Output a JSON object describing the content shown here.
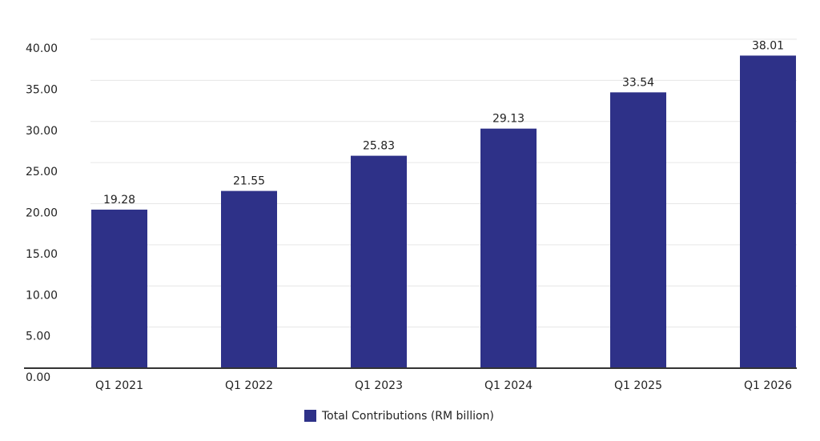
{
  "chart_data": {
    "type": "bar",
    "categories": [
      "Q1 2021",
      "Q1 2022",
      "Q1 2023",
      "Q1 2024",
      "Q1 2025",
      "Q1 2026"
    ],
    "series": [
      {
        "name": "Total Contributions (RM billion)",
        "color": "#2e3188",
        "values": [
          19.28,
          21.55,
          25.83,
          29.13,
          33.54,
          38.01
        ]
      }
    ],
    "ylim": [
      0,
      40
    ],
    "yticks": [
      {
        "value": 0,
        "label": "0.00"
      },
      {
        "value": 5,
        "label": "5.00"
      },
      {
        "value": 10,
        "label": "10.00"
      },
      {
        "value": 15,
        "label": "15.00"
      },
      {
        "value": 20,
        "label": "20.00"
      },
      {
        "value": 25,
        "label": "25.00"
      },
      {
        "value": 30,
        "label": "30.00"
      },
      {
        "value": 35,
        "label": "35.00"
      },
      {
        "value": 40,
        "label": "40.00"
      }
    ],
    "grid": true,
    "legend": "bottom"
  }
}
